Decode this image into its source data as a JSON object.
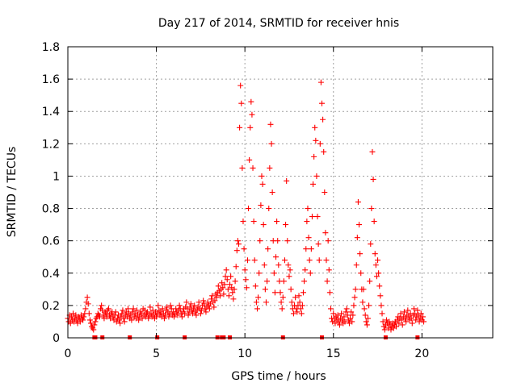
{
  "chart_data": {
    "type": "scatter",
    "title": "Day 217 of 2014, SRMTID for receiver hnis",
    "xlabel": "GPS time / hours",
    "ylabel": "SRMTID / TECUs",
    "xlim": [
      0,
      24
    ],
    "ylim": [
      0,
      1.8
    ],
    "xticks": [
      0,
      5,
      10,
      15,
      20
    ],
    "yticks": [
      0,
      0.2,
      0.4,
      0.6,
      0.8,
      1,
      1.2,
      1.4,
      1.6,
      1.8
    ],
    "xtick_labels": [
      "0",
      "5",
      "10",
      "15",
      "20"
    ],
    "ytick_labels": [
      "0",
      "0.2",
      "0.4",
      "0.6",
      "0.8",
      "1",
      "1.2",
      "1.4",
      "1.6",
      "1.8"
    ],
    "grid": true,
    "series": [
      {
        "name": "SRMTID",
        "marker": "+",
        "color": "#ff0000",
        "x_start": 0,
        "x_step": 0.05,
        "y": [
          0.12,
          0.1,
          0.14,
          0.09,
          0.13,
          0.11,
          0.15,
          0.1,
          0.12,
          0.14,
          0.11,
          0.09,
          0.13,
          0.12,
          0.1,
          0.14,
          0.12,
          0.11,
          0.13,
          0.15,
          0.18,
          0.22,
          0.25,
          0.21,
          0.15,
          0.11,
          0.09,
          0.07,
          0.06,
          0.05,
          0.08,
          0.1,
          0.12,
          0.13,
          0.15,
          0.14,
          0.13,
          0.18,
          0.2,
          0.17,
          0.14,
          0.12,
          0.16,
          0.15,
          0.13,
          0.17,
          0.18,
          0.14,
          0.12,
          0.15,
          0.16,
          0.13,
          0.11,
          0.14,
          0.16,
          0.1,
          0.12,
          0.14,
          0.11,
          0.09,
          0.13,
          0.15,
          0.17,
          0.12,
          0.1,
          0.14,
          0.16,
          0.13,
          0.18,
          0.15,
          0.12,
          0.14,
          0.11,
          0.16,
          0.18,
          0.13,
          0.15,
          0.12,
          0.17,
          0.14,
          0.11,
          0.13,
          0.16,
          0.15,
          0.12,
          0.18,
          0.14,
          0.17,
          0.13,
          0.15,
          0.16,
          0.12,
          0.14,
          0.19,
          0.15,
          0.13,
          0.17,
          0.14,
          0.12,
          0.16,
          0.13,
          0.15,
          0.2,
          0.17,
          0.14,
          0.16,
          0.13,
          0.18,
          0.15,
          0.12,
          0.14,
          0.17,
          0.19,
          0.16,
          0.13,
          0.15,
          0.2,
          0.18,
          0.14,
          0.16,
          0.13,
          0.15,
          0.18,
          0.16,
          0.14,
          0.17,
          0.2,
          0.18,
          0.15,
          0.13,
          0.16,
          0.18,
          0.15,
          0.19,
          0.22,
          0.18,
          0.14,
          0.16,
          0.19,
          0.21,
          0.17,
          0.15,
          0.18,
          0.2,
          0.16,
          0.14,
          0.17,
          0.19,
          0.22,
          0.18,
          0.15,
          0.17,
          0.2,
          0.23,
          0.21,
          0.18,
          0.16,
          0.19,
          0.22,
          0.2,
          0.18,
          0.21,
          0.24,
          0.26,
          0.22,
          0.19,
          0.23,
          0.27,
          0.25,
          0.28,
          0.32,
          0.29,
          0.26,
          0.3,
          0.34,
          0.31,
          0.27,
          0.33,
          0.38,
          0.42,
          0.36,
          0.3,
          0.26,
          0.33,
          0.38,
          0.31,
          0.28,
          0.24,
          0.3,
          0.35,
          0.44,
          0.54,
          0.6,
          0.58,
          1.3,
          1.56,
          1.45,
          1.05,
          0.72,
          0.55,
          0.42,
          0.36,
          0.31,
          0.48,
          0.8,
          1.1,
          1.3,
          1.46,
          1.38,
          1.05,
          0.72,
          0.48,
          0.32,
          0.22,
          0.18,
          0.25,
          0.4,
          0.6,
          0.82,
          1.0,
          0.95,
          0.7,
          0.45,
          0.3,
          0.22,
          0.35,
          0.55,
          0.8,
          1.05,
          1.32,
          1.2,
          0.9,
          0.6,
          0.4,
          0.28,
          0.5,
          0.72,
          0.6,
          0.45,
          0.35,
          0.28,
          0.22,
          0.18,
          0.25,
          0.35,
          0.48,
          0.7,
          0.97,
          0.6,
          0.45,
          0.38,
          0.42,
          0.3,
          0.22,
          0.18,
          0.15,
          0.2,
          0.25,
          0.18,
          0.16,
          0.2,
          0.26,
          0.22,
          0.18,
          0.15,
          0.2,
          0.28,
          0.35,
          0.42,
          0.55,
          0.72,
          0.8,
          0.62,
          0.48,
          0.4,
          0.55,
          0.75,
          0.95,
          1.12,
          1.3,
          1.22,
          1.0,
          0.75,
          0.58,
          0.48,
          1.2,
          1.58,
          1.45,
          1.35,
          1.15,
          0.9,
          0.65,
          0.48,
          0.35,
          0.6,
          0.42,
          0.28,
          0.18,
          0.12,
          0.1,
          0.15,
          0.12,
          0.09,
          0.13,
          0.11,
          0.14,
          0.1,
          0.08,
          0.12,
          0.15,
          0.11,
          0.09,
          0.13,
          0.1,
          0.16,
          0.18,
          0.14,
          0.11,
          0.09,
          0.12,
          0.16,
          0.1,
          0.14,
          0.2,
          0.25,
          0.3,
          0.45,
          0.62,
          0.84,
          0.7,
          0.52,
          0.4,
          0.3,
          0.22,
          0.3,
          0.18,
          0.14,
          0.1,
          0.08,
          0.12,
          0.2,
          0.35,
          0.58,
          0.8,
          1.15,
          0.98,
          0.72,
          0.52,
          0.45,
          0.38,
          0.48,
          0.4,
          0.32,
          0.26,
          0.2,
          0.15,
          0.1,
          0.07,
          0.05,
          0.08,
          0.11,
          0.09,
          0.06,
          0.1,
          0.08,
          0.05,
          0.07,
          0.09,
          0.06,
          0.08,
          0.1,
          0.07,
          0.11,
          0.13,
          0.09,
          0.12,
          0.15,
          0.11,
          0.08,
          0.13,
          0.16,
          0.12,
          0.1,
          0.14,
          0.17,
          0.13,
          0.11,
          0.15,
          0.12,
          0.09,
          0.14,
          0.18,
          0.15,
          0.11,
          0.13,
          0.17,
          0.14,
          0.1,
          0.12,
          0.15,
          0.11,
          0.13,
          0.1
        ]
      }
    ],
    "zero_points_x": [
      1.5,
      1.55,
      1.95,
      3.5,
      5.05,
      6.6,
      8.45,
      8.7,
      8.8,
      9.15,
      12.15,
      14.35,
      17.95,
      19.75
    ]
  }
}
